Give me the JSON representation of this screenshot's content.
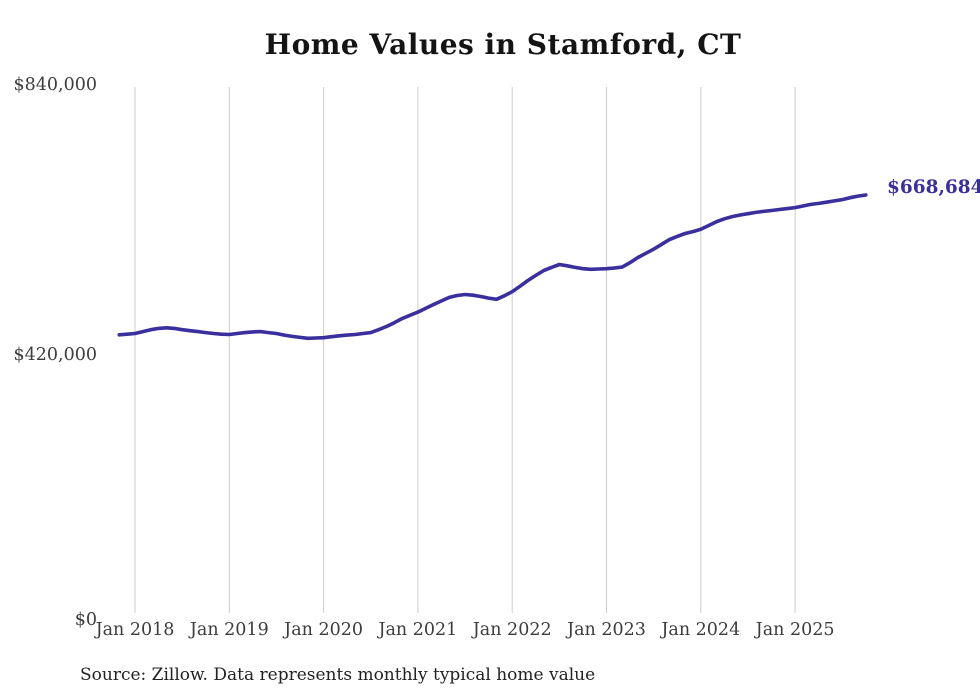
{
  "chart": {
    "title": "Home Values in Stamford, CT",
    "source_note": "Source: Zillow. Data represents monthly typical home value",
    "end_label": "$668,684",
    "colors": {
      "line": "#39309e",
      "grid": "#cccccc",
      "tick_text": "#3d3d3d",
      "title_text": "#141414"
    },
    "y_axis": {
      "ticks": [
        {
          "label": "$840,000",
          "value": 840000
        },
        {
          "label": "$420,000",
          "value": 420000
        },
        {
          "label": "$0",
          "value": 0
        }
      ]
    },
    "x_axis": {
      "ticks": [
        "Jan 2018",
        "Jan 2019",
        "Jan 2020",
        "Jan 2021",
        "Jan 2022",
        "Jan 2023",
        "Jan 2024",
        "Jan 2025"
      ]
    }
  },
  "chart_data": {
    "type": "line",
    "title": "Home Values in Stamford, CT",
    "series_name": "Monthly typical home value (Zillow)",
    "x": [
      "2017-11",
      "2017-12",
      "2018-01",
      "2018-02",
      "2018-03",
      "2018-04",
      "2018-05",
      "2018-06",
      "2018-07",
      "2018-08",
      "2018-09",
      "2018-10",
      "2018-11",
      "2018-12",
      "2019-01",
      "2019-02",
      "2019-03",
      "2019-04",
      "2019-05",
      "2019-06",
      "2019-07",
      "2019-08",
      "2019-09",
      "2019-10",
      "2019-11",
      "2019-12",
      "2020-01",
      "2020-02",
      "2020-03",
      "2020-04",
      "2020-05",
      "2020-06",
      "2020-07",
      "2020-08",
      "2020-09",
      "2020-10",
      "2020-11",
      "2020-12",
      "2021-01",
      "2021-02",
      "2021-03",
      "2021-04",
      "2021-05",
      "2021-06",
      "2021-07",
      "2021-08",
      "2021-09",
      "2021-10",
      "2021-11",
      "2021-12",
      "2022-01",
      "2022-02",
      "2022-03",
      "2022-04",
      "2022-05",
      "2022-06",
      "2022-07",
      "2022-08",
      "2022-09",
      "2022-10",
      "2022-11",
      "2022-12",
      "2023-01",
      "2023-02",
      "2023-03",
      "2023-04",
      "2023-05",
      "2023-06",
      "2023-07",
      "2023-08",
      "2023-09",
      "2023-10",
      "2023-11",
      "2023-12",
      "2024-01",
      "2024-02",
      "2024-03",
      "2024-04",
      "2024-05",
      "2024-06",
      "2024-07",
      "2024-08",
      "2024-09",
      "2024-10",
      "2024-11",
      "2024-12",
      "2025-01",
      "2025-02",
      "2025-03",
      "2025-04",
      "2025-05",
      "2025-06",
      "2025-07",
      "2025-08",
      "2025-09",
      "2025-10"
    ],
    "values": [
      450000,
      451000,
      452000,
      455000,
      458000,
      460000,
      461000,
      460000,
      458000,
      456500,
      455000,
      453500,
      452000,
      451000,
      450500,
      452000,
      453500,
      454500,
      455000,
      453500,
      452000,
      449500,
      447500,
      446000,
      444500,
      445000,
      445500,
      447000,
      448500,
      449500,
      450500,
      452000,
      453500,
      458000,
      463000,
      469000,
      475500,
      480500,
      485500,
      491500,
      497500,
      503000,
      508500,
      511500,
      513000,
      512000,
      510000,
      507500,
      505500,
      511000,
      517500,
      526000,
      535000,
      543000,
      550500,
      555500,
      560000,
      558000,
      555500,
      553500,
      552500,
      553000,
      553500,
      554500,
      556000,
      563000,
      571000,
      577500,
      584000,
      591500,
      599000,
      604000,
      608500,
      611500,
      615000,
      621000,
      627000,
      631500,
      635000,
      637500,
      639500,
      641500,
      643000,
      644500,
      646000,
      647500,
      649000,
      651500,
      654000,
      655500,
      657500,
      659500,
      661500,
      664500,
      667000,
      668684
    ],
    "ylim": [
      0,
      840000
    ],
    "y_ticks": [
      0,
      420000,
      840000
    ],
    "x_tick_labels": [
      "Jan 2018",
      "Jan 2019",
      "Jan 2020",
      "Jan 2021",
      "Jan 2022",
      "Jan 2023",
      "Jan 2024",
      "Jan 2025"
    ],
    "grid": "vertical-only",
    "legend": "none",
    "final_value_label": "$668,684"
  }
}
